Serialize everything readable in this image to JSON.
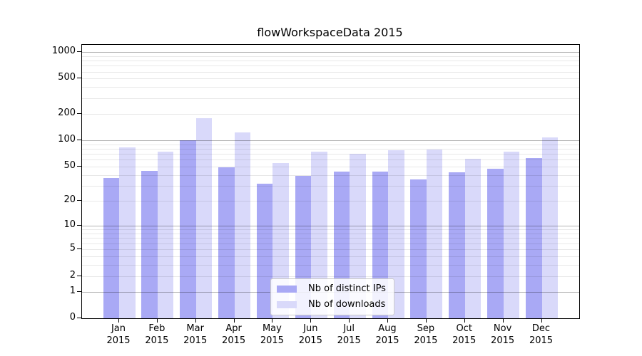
{
  "chart_data": {
    "type": "bar",
    "title": "flowWorkspaceData 2015",
    "year": "2015",
    "categories": [
      "Jan",
      "Feb",
      "Mar",
      "Apr",
      "May",
      "Jun",
      "Jul",
      "Aug",
      "Sep",
      "Oct",
      "Nov",
      "Dec"
    ],
    "series": [
      {
        "name": "Nb of distinct IPs",
        "color": "#a9a9f5",
        "values": [
          37,
          45,
          100,
          49,
          32,
          39,
          44,
          44,
          36,
          43,
          47,
          63
        ]
      },
      {
        "name": "Nb of downloads",
        "color": "#d9d9fa",
        "values": [
          83,
          74,
          180,
          124,
          55,
          74,
          70,
          77,
          78,
          62,
          75,
          107
        ]
      }
    ],
    "y_axis": {
      "scale": "log1p",
      "min": 0,
      "max": 1200,
      "tick_values": [
        0,
        1,
        2,
        5,
        10,
        20,
        50,
        100,
        200,
        500,
        1000
      ],
      "tick_labels": [
        "0",
        "1",
        "2",
        "5",
        "10",
        "20",
        "50",
        "100",
        "200",
        "500",
        "1000"
      ],
      "major_grid_values": [
        1,
        10,
        100,
        1000
      ],
      "minor_grid_values": [
        2,
        3,
        4,
        5,
        6,
        7,
        8,
        9,
        20,
        30,
        40,
        50,
        60,
        70,
        80,
        90,
        200,
        300,
        400,
        500,
        600,
        700,
        800,
        900
      ]
    },
    "x_axis": {
      "label_line_2": "2015"
    },
    "grid": "on",
    "legend_position": "lower center-left",
    "colors": {
      "axis": "#000000",
      "background": "#ffffff",
      "text": "#000000"
    }
  }
}
